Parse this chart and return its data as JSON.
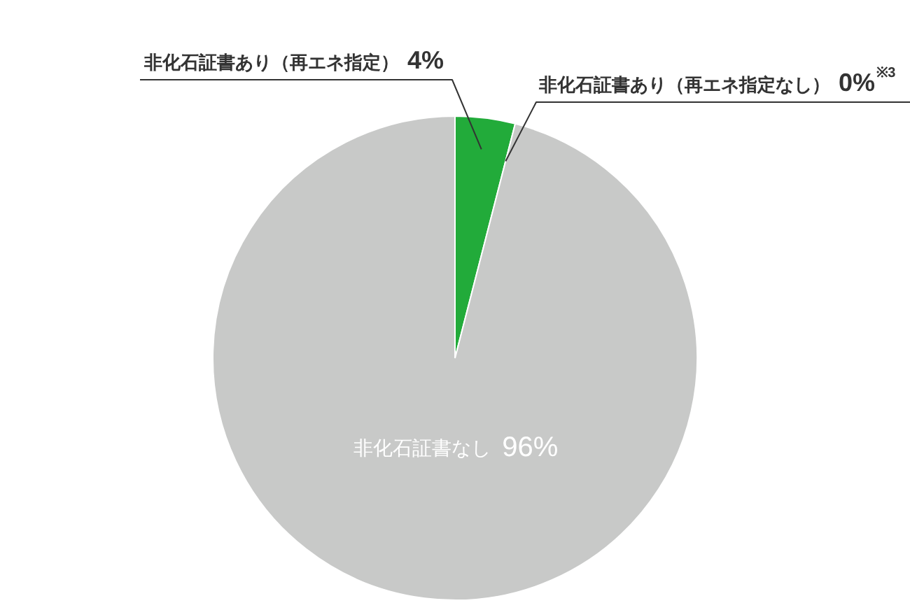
{
  "chart_data": {
    "type": "pie",
    "categories": [
      "非化石証書あり（再エネ指定）",
      "非化石証書あり（再エネ指定なし）",
      "非化石証書なし"
    ],
    "values": [
      4,
      0,
      96
    ],
    "colors": [
      "#22ab3a",
      "#ffffff",
      "#c8c9c8"
    ],
    "value_labels": [
      "4%",
      "0%$^{※3}$",
      "96%"
    ]
  }
}
